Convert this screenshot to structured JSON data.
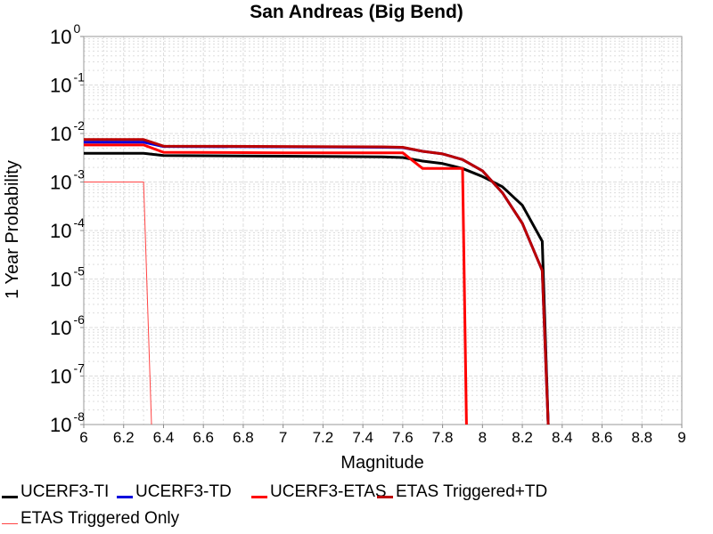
{
  "chart_data": {
    "type": "line",
    "title": "San Andreas (Big Bend)",
    "xlabel": "Magnitude",
    "ylabel": "1 Year Probability",
    "xlim": [
      6,
      9
    ],
    "ylim": [
      1e-08,
      1
    ],
    "yscale": "log",
    "grid": true,
    "x_ticks": [
      "6",
      "6.2",
      "6.4",
      "6.6",
      "6.8",
      "7",
      "7.2",
      "7.4",
      "7.6",
      "7.8",
      "8",
      "8.2",
      "8.4",
      "8.6",
      "8.8",
      "9"
    ],
    "y_ticks": [
      {
        "base": "10",
        "exp": "0"
      },
      {
        "base": "10",
        "exp": "-1"
      },
      {
        "base": "10",
        "exp": "-2"
      },
      {
        "base": "10",
        "exp": "-3"
      },
      {
        "base": "10",
        "exp": "-4"
      },
      {
        "base": "10",
        "exp": "-5"
      },
      {
        "base": "10",
        "exp": "-6"
      },
      {
        "base": "10",
        "exp": "-7"
      },
      {
        "base": "10",
        "exp": "-8"
      }
    ],
    "legend_position": "bottom",
    "series": [
      {
        "name": "UCERF3-TI",
        "color": "#000000",
        "width": 3,
        "x": [
          6.0,
          6.3,
          6.4,
          7.0,
          7.5,
          7.6,
          7.7,
          7.8,
          7.9,
          8.0,
          8.1,
          8.2,
          8.3,
          8.33
        ],
        "y": [
          0.0039,
          0.0039,
          0.0035,
          0.0034,
          0.0033,
          0.0032,
          0.0027,
          0.0024,
          0.0019,
          0.0013,
          0.0008,
          0.00033,
          6e-05,
          1e-08
        ]
      },
      {
        "name": "UCERF3-TD",
        "color": "#0000dd",
        "width": 3,
        "x": [
          6.0,
          6.3,
          6.4,
          7.0,
          7.5,
          7.6,
          7.7,
          7.8,
          7.9,
          8.0,
          8.1,
          8.2,
          8.3,
          8.33
        ],
        "y": [
          0.0066,
          0.0066,
          0.0054,
          0.0053,
          0.0052,
          0.0051,
          0.0043,
          0.0038,
          0.0029,
          0.0017,
          0.0006,
          0.00014,
          1.5e-05,
          1e-08
        ]
      },
      {
        "name": "UCERF3-ETAS",
        "color": "#ff0000",
        "width": 3,
        "x": [
          6.0,
          6.3,
          6.4,
          7.0,
          7.5,
          7.6,
          7.7,
          7.8,
          7.9,
          7.92
        ],
        "y": [
          0.0058,
          0.0058,
          0.0041,
          0.004,
          0.004,
          0.004,
          0.0019,
          0.0019,
          0.0019,
          1e-08
        ]
      },
      {
        "name": "ETAS Triggered+TD",
        "color": "#bb0000",
        "width": 3,
        "x": [
          6.0,
          6.3,
          6.4,
          7.0,
          7.5,
          7.6,
          7.7,
          7.8,
          7.9,
          8.0,
          8.1,
          8.2,
          8.3,
          8.33
        ],
        "y": [
          0.0075,
          0.0075,
          0.0055,
          0.0054,
          0.0053,
          0.0052,
          0.0043,
          0.0038,
          0.0029,
          0.0017,
          0.0006,
          0.00014,
          1.5e-05,
          1e-08
        ]
      },
      {
        "name": "ETAS Triggered Only",
        "color": "#ff4444",
        "width": 1,
        "x": [
          6.0,
          6.3,
          6.34
        ],
        "y": [
          0.001,
          0.001,
          1e-08
        ]
      }
    ]
  }
}
